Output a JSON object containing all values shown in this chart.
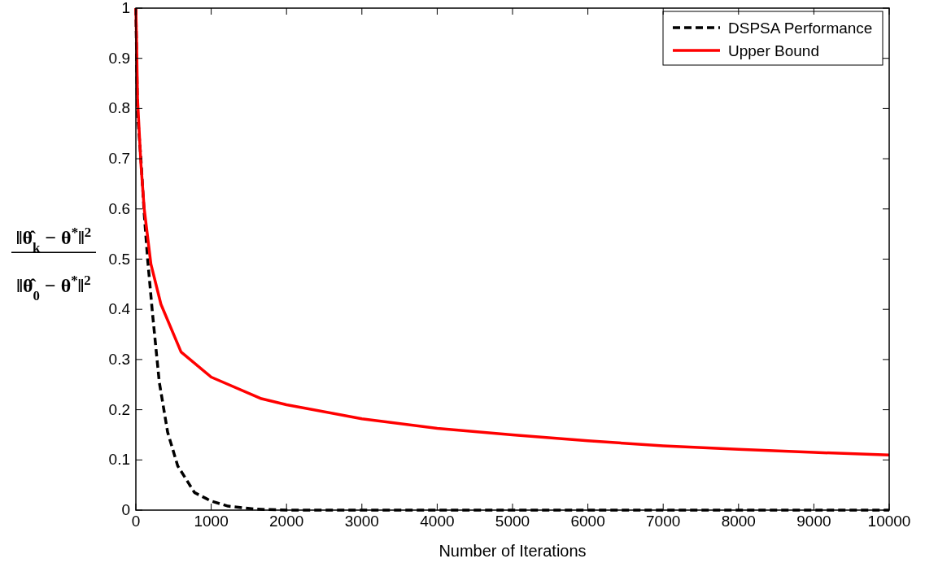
{
  "chart_data": {
    "type": "line",
    "xlabel": "Number of Iterations",
    "ylabel": "‖θ̂$_{k}$ − θ$^{*}$‖$^{2}$\n‖θ̂$_{0}$ − θ$^{*}$‖$^{2}$",
    "xlim": [
      0,
      10000
    ],
    "xticks": [
      0,
      1000,
      2000,
      3000,
      4000,
      5000,
      6000,
      7000,
      8000,
      9000,
      10000
    ],
    "ylim": [
      0,
      1
    ],
    "yticks": [
      0,
      0.1,
      0.2,
      0.3,
      0.4,
      0.5,
      0.6,
      0.7,
      0.8,
      0.9,
      1
    ],
    "grid": false,
    "legend": "top right",
    "series": [
      {
        "name": "DSPSA Performance",
        "color": "#000000",
        "line_style": "dashed",
        "x": [
          0,
          22,
          67,
          111,
          156,
          222,
          311,
          422,
          556,
          778,
          1000,
          1222,
          1578,
          2000,
          10000
        ],
        "values": [
          1,
          0.79,
          0.7,
          0.59,
          0.5,
          0.39,
          0.255,
          0.155,
          0.088,
          0.035,
          0.018,
          0.008,
          0.002,
          0,
          0
        ]
      },
      {
        "name": "Upper Bound",
        "color": "#ff0000",
        "line_style": "solid",
        "x": [
          0,
          10,
          22,
          67,
          111,
          200,
          333,
          600,
          1000,
          1667,
          2000,
          3000,
          4000,
          5000,
          6000,
          7000,
          8000,
          9000,
          10000
        ],
        "values": [
          1,
          0.93,
          0.82,
          0.69,
          0.6,
          0.49,
          0.41,
          0.315,
          0.265,
          0.222,
          0.21,
          0.182,
          0.163,
          0.15,
          0.138,
          0.128,
          0.121,
          0.115,
          0.11
        ]
      }
    ]
  }
}
